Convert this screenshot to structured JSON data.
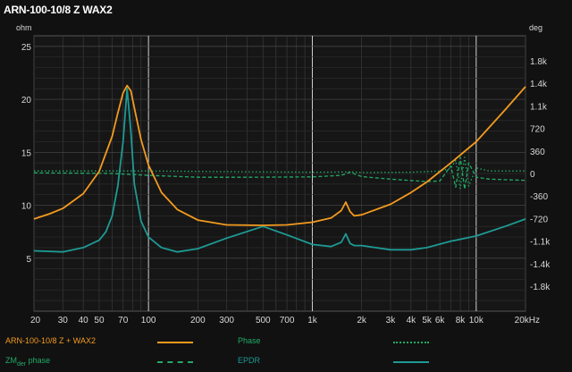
{
  "title": "ARN-100-10/8 Z WAX2",
  "chart_data": {
    "type": "line",
    "xscale": "log",
    "xlim": [
      20,
      20000
    ],
    "ylim": [
      0,
      26
    ],
    "y2lim": [
      -2200,
      2200
    ],
    "ylabel": "ohm",
    "y2label": "deg",
    "x_ticks": [
      {
        "value": 20,
        "label": "20"
      },
      {
        "value": 30,
        "label": "30"
      },
      {
        "value": 40,
        "label": "40"
      },
      {
        "value": 50,
        "label": "50"
      },
      {
        "value": 70,
        "label": "70"
      },
      {
        "value": 100,
        "label": "100"
      },
      {
        "value": 200,
        "label": "200"
      },
      {
        "value": 300,
        "label": "300"
      },
      {
        "value": 500,
        "label": "500"
      },
      {
        "value": 700,
        "label": "700"
      },
      {
        "value": 1000,
        "label": "1k"
      },
      {
        "value": 2000,
        "label": "2k"
      },
      {
        "value": 3000,
        "label": "3k"
      },
      {
        "value": 4000,
        "label": "4k"
      },
      {
        "value": 5000,
        "label": "5k"
      },
      {
        "value": 6000,
        "label": "6k"
      },
      {
        "value": 8000,
        "label": "8k"
      },
      {
        "value": 10000,
        "label": "10k"
      },
      {
        "value": 20000,
        "label": "20kHz"
      }
    ],
    "y_ticks": [
      {
        "value": 5,
        "label": "5"
      },
      {
        "value": 10,
        "label": "10"
      },
      {
        "value": 15,
        "label": "15"
      },
      {
        "value": 20,
        "label": "20"
      },
      {
        "value": 25,
        "label": "25"
      }
    ],
    "y2_ticks": [
      {
        "value": 1800,
        "label": "1.8k"
      },
      {
        "value": 1440,
        "label": "1.4k"
      },
      {
        "value": 1080,
        "label": "1.1k"
      },
      {
        "value": 720,
        "label": "720"
      },
      {
        "value": 360,
        "label": "360"
      },
      {
        "value": 0,
        "label": "0"
      },
      {
        "value": -360,
        "label": "-360"
      },
      {
        "value": -720,
        "label": "-720"
      },
      {
        "value": -1080,
        "label": "-1.1k"
      },
      {
        "value": -1440,
        "label": "-1.4k"
      },
      {
        "value": -1800,
        "label": "-1.8k"
      }
    ],
    "series": [
      {
        "name": "ARN-100-10/8 Z + WAX2",
        "color": "#f39a1f",
        "axis": "left",
        "style": "solid",
        "x": [
          20,
          25,
          30,
          40,
          50,
          60,
          65,
          70,
          74,
          78,
          82,
          90,
          100,
          120,
          150,
          200,
          300,
          500,
          700,
          1000,
          1300,
          1500,
          1600,
          1700,
          1800,
          2000,
          3000,
          4000,
          5000,
          7000,
          10000,
          15000,
          20000
        ],
        "values": [
          8.7,
          9.2,
          9.7,
          11.1,
          13.2,
          16.5,
          18.7,
          20.6,
          21.3,
          20.8,
          19.2,
          16.2,
          13.8,
          11.2,
          9.6,
          8.6,
          8.15,
          8.1,
          8.15,
          8.4,
          8.8,
          9.5,
          10.3,
          9.4,
          9.0,
          9.1,
          10.1,
          11.2,
          12.2,
          14.0,
          16.0,
          19.0,
          21.2
        ]
      },
      {
        "name": "Phase",
        "color": "#22aa66",
        "axis": "right",
        "style": "dotted",
        "x": [
          20,
          50,
          100,
          300,
          1000,
          1700,
          2000,
          4000,
          6000,
          7000,
          7500,
          8000,
          8500,
          9000,
          10000,
          12000,
          20000
        ],
        "values": [
          40,
          40,
          40,
          30,
          20,
          25,
          15,
          20,
          40,
          80,
          210,
          -240,
          260,
          -200,
          90,
          40,
          40
        ]
      },
      {
        "name": "ZMder phase",
        "color": "#22aa66",
        "axis": "right",
        "style": "dashed",
        "x": [
          20,
          40,
          60,
          100,
          200,
          400,
          1000,
          1500,
          1700,
          2000,
          3000,
          5000,
          6000,
          7000,
          7500,
          8000,
          8500,
          9000,
          10000,
          12000,
          20000
        ],
        "values": [
          10,
          5,
          0,
          -30,
          -60,
          -60,
          -55,
          -30,
          20,
          -50,
          -90,
          -130,
          -120,
          120,
          -220,
          260,
          -250,
          170,
          -60,
          -90,
          -110
        ]
      },
      {
        "name": "EPDR",
        "color": "#1e9a94",
        "axis": "left",
        "style": "solid",
        "x": [
          20,
          30,
          40,
          50,
          55,
          60,
          65,
          70,
          74,
          78,
          82,
          90,
          100,
          120,
          150,
          200,
          300,
          500,
          700,
          1000,
          1300,
          1500,
          1600,
          1700,
          1800,
          2000,
          3000,
          4000,
          5000,
          7000,
          10000,
          15000,
          20000
        ],
        "values": [
          5.7,
          5.6,
          6.0,
          6.7,
          7.5,
          9.0,
          11.8,
          16.0,
          21.0,
          17.0,
          12.0,
          8.5,
          7.0,
          6.0,
          5.6,
          5.9,
          6.9,
          8.0,
          7.2,
          6.3,
          6.1,
          6.5,
          7.3,
          6.4,
          6.2,
          6.2,
          5.8,
          5.8,
          6.0,
          6.6,
          7.1,
          8.0,
          8.7
        ]
      }
    ]
  },
  "legend": {
    "entry1": "ARN-100-10/8 Z + WAX2",
    "entry2": "Phase",
    "entry3_main": "ZM",
    "entry3_sub": "der",
    "entry3_rest": " phase",
    "entry4": "EPDR"
  }
}
